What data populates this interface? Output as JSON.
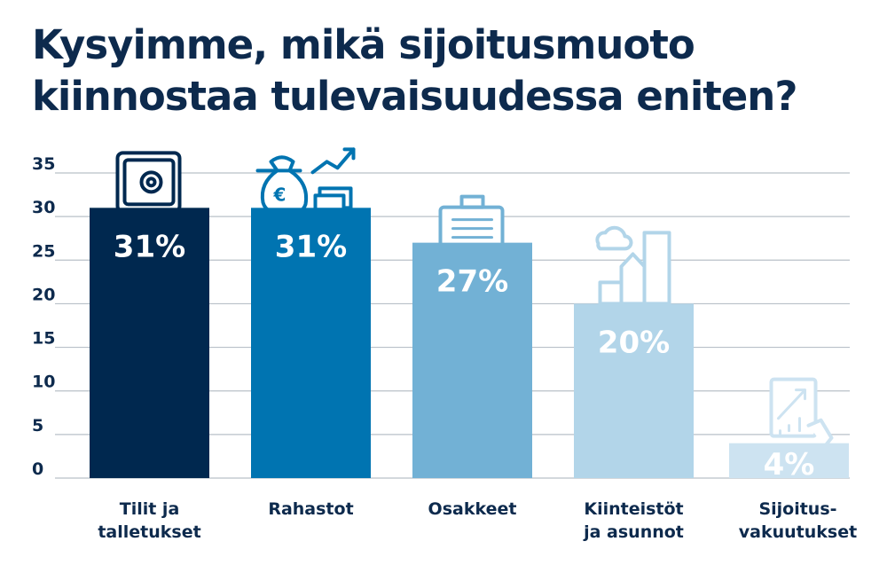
{
  "title_lines": [
    "Kysyimme, mikä sijoitusmuoto",
    "kiinnostaa tulevaisuudessa eniten?"
  ],
  "chart_data": {
    "type": "bar",
    "categories": [
      [
        "Tilit ja",
        "talletukset"
      ],
      [
        "Rahastot"
      ],
      [
        "Osakkeet"
      ],
      [
        "Kiinteistöt",
        "ja asunnot"
      ],
      [
        "Sijoitus-",
        "vakuutukset"
      ]
    ],
    "values": [
      31,
      31,
      27,
      20,
      4
    ],
    "value_labels": [
      "31%",
      "31%",
      "27%",
      "20%",
      "4%"
    ],
    "colors": [
      "#00284f",
      "#0074b1",
      "#72b1d5",
      "#b2d5e9",
      "#cde3f1"
    ],
    "icons": [
      "safe-icon",
      "money-bag-euro-icon",
      "briefcase-icon",
      "buildings-icon",
      "tablet-chart-icon"
    ],
    "yticks": [
      "0",
      "5",
      "10",
      "15",
      "20",
      "25",
      "30",
      "35"
    ],
    "ylim": [
      0,
      35
    ],
    "grid": true,
    "ylabel": "",
    "xlabel": ""
  }
}
